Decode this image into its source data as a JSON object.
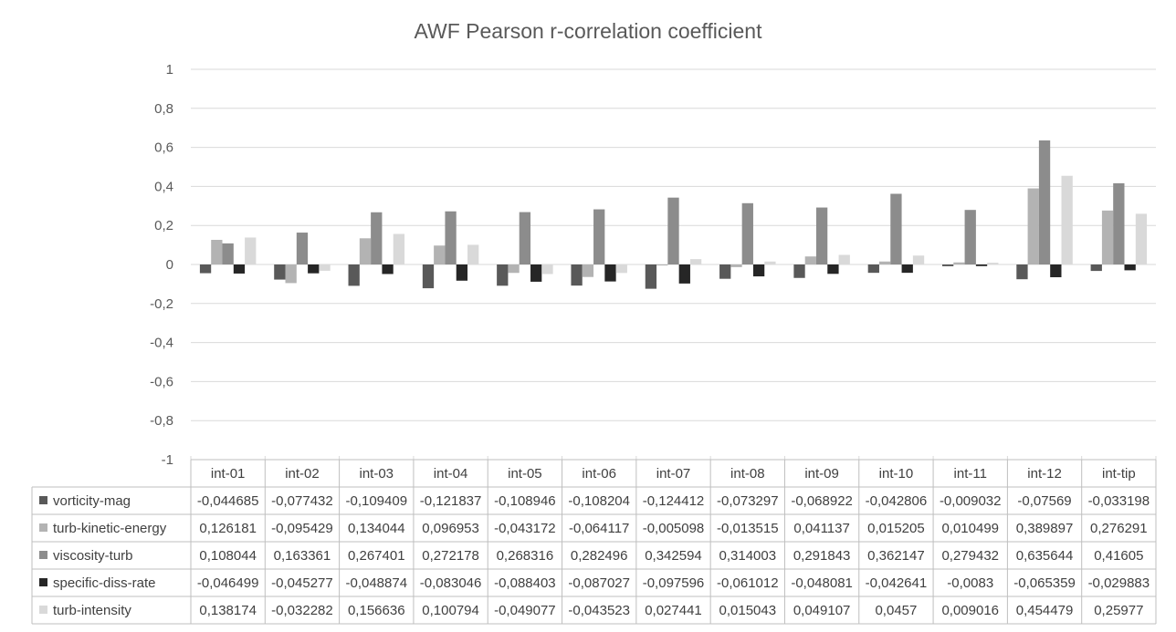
{
  "chart_data": {
    "type": "bar",
    "title": "AWF Pearson r-correlation coefficient",
    "xlabel": "",
    "ylabel": "",
    "ylim": [
      -1,
      1
    ],
    "ytick_labels": [
      "1",
      "0,8",
      "0,6",
      "0,4",
      "0,2",
      "0",
      "-0,2",
      "-0,4",
      "-0,6",
      "-0,8",
      "-1"
    ],
    "grid": true,
    "legend": "data-table-left",
    "categories": [
      "int-01",
      "int-02",
      "int-03",
      "int-04",
      "int-05",
      "int-06",
      "int-07",
      "int-08",
      "int-09",
      "int-10",
      "int-11",
      "int-12",
      "int-tip"
    ],
    "series": [
      {
        "name": "vorticity-mag",
        "color": "#595959",
        "values": [
          -0.044685,
          -0.077432,
          -0.109409,
          -0.121837,
          -0.108946,
          -0.108204,
          -0.124412,
          -0.073297,
          -0.068922,
          -0.042806,
          -0.009032,
          -0.07569,
          -0.033198
        ],
        "labels": [
          "-0,044685",
          "-0,077432",
          "-0,109409",
          "-0,121837",
          "-0,108946",
          "-0,108204",
          "-0,124412",
          "-0,073297",
          "-0,068922",
          "-0,042806",
          "-0,009032",
          "-0,07569",
          "-0,033198"
        ]
      },
      {
        "name": "turb-kinetic-energy",
        "color": "#b3b3b3",
        "values": [
          0.126181,
          -0.095429,
          0.134044,
          0.096953,
          -0.043172,
          -0.064117,
          -0.005098,
          -0.013515,
          0.041137,
          0.015205,
          0.010499,
          0.389897,
          0.276291
        ],
        "labels": [
          "0,126181",
          "-0,095429",
          "0,134044",
          "0,096953",
          "-0,043172",
          "-0,064117",
          "-0,005098",
          "-0,013515",
          "0,041137",
          "0,015205",
          "0,010499",
          "0,389897",
          "0,276291"
        ]
      },
      {
        "name": "viscosity-turb",
        "color": "#8c8c8c",
        "values": [
          0.108044,
          0.163361,
          0.267401,
          0.272178,
          0.268316,
          0.282496,
          0.342594,
          0.314003,
          0.291843,
          0.362147,
          0.279432,
          0.635644,
          0.41605
        ],
        "labels": [
          "0,108044",
          "0,163361",
          "0,267401",
          "0,272178",
          "0,268316",
          "0,282496",
          "0,342594",
          "0,314003",
          "0,291843",
          "0,362147",
          "0,279432",
          "0,635644",
          "0,41605"
        ]
      },
      {
        "name": "specific-diss-rate",
        "color": "#262626",
        "values": [
          -0.046499,
          -0.045277,
          -0.048874,
          -0.083046,
          -0.088403,
          -0.087027,
          -0.097596,
          -0.061012,
          -0.048081,
          -0.042641,
          -0.0083,
          -0.065359,
          -0.029883
        ],
        "labels": [
          "-0,046499",
          "-0,045277",
          "-0,048874",
          "-0,083046",
          "-0,088403",
          "-0,087027",
          "-0,097596",
          "-0,061012",
          "-0,048081",
          "-0,042641",
          "-0,0083",
          "-0,065359",
          "-0,029883"
        ]
      },
      {
        "name": "turb-intensity",
        "color": "#d9d9d9",
        "values": [
          0.138174,
          -0.032282,
          0.156636,
          0.100794,
          -0.049077,
          -0.043523,
          0.027441,
          0.015043,
          0.049107,
          0.0457,
          0.009016,
          0.454479,
          0.25977
        ],
        "labels": [
          "0,138174",
          "-0,032282",
          "0,156636",
          "0,100794",
          "-0,049077",
          "-0,043523",
          "0,027441",
          "0,015043",
          "0,049107",
          "0,0457",
          "0,009016",
          "0,454479",
          "0,25977"
        ]
      }
    ]
  }
}
